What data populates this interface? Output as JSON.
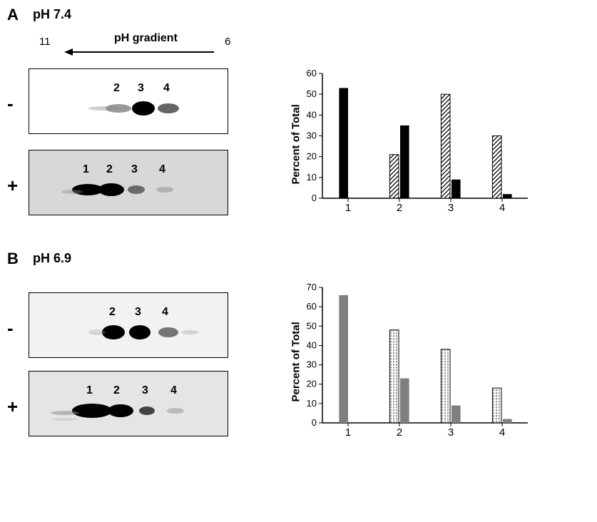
{
  "panel_a": {
    "label": "A",
    "subtitle": "pH 7.4",
    "gradient": {
      "text": "pH gradient",
      "left_val": "11",
      "right_val": "6"
    },
    "conditions": {
      "minus": "-",
      "plus": "+"
    },
    "minus_spots": [
      "2",
      "3",
      "4"
    ],
    "plus_spots": [
      "1",
      "2",
      "3",
      "4"
    ],
    "chart": {
      "type": "bar",
      "ylabel": "Percent of Total",
      "ylim": [
        0,
        60
      ],
      "ytick_step": 10,
      "yticks": [
        "0",
        "10",
        "20",
        "30",
        "40",
        "50",
        "60"
      ],
      "categories": [
        "1",
        "2",
        "3",
        "4"
      ],
      "series": [
        {
          "name": "plus",
          "pattern": "solid",
          "color": "#000000",
          "values": [
            53,
            35,
            9,
            2
          ]
        },
        {
          "name": "minus",
          "pattern": "diagonal",
          "color": "#000000",
          "values": [
            0,
            21,
            50,
            30
          ]
        }
      ],
      "background_color": "#ffffff",
      "axis_color": "#000000",
      "label_fontsize": 15,
      "bar_width": 0.35
    }
  },
  "panel_b": {
    "label": "B",
    "subtitle": "pH 6.9",
    "conditions": {
      "minus": "-",
      "plus": "+"
    },
    "minus_spots": [
      "2",
      "3",
      "4"
    ],
    "plus_spots": [
      "1",
      "2",
      "3",
      "4"
    ],
    "chart": {
      "type": "bar",
      "ylabel": "Percent of Total",
      "ylim": [
        0,
        70
      ],
      "ytick_step": 10,
      "yticks": [
        "0",
        "10",
        "20",
        "30",
        "40",
        "50",
        "60",
        "70"
      ],
      "categories": [
        "1",
        "2",
        "3",
        "4"
      ],
      "series": [
        {
          "name": "plus",
          "pattern": "solid",
          "color": "#7f7f7f",
          "values": [
            66,
            23,
            9,
            2
          ]
        },
        {
          "name": "minus",
          "pattern": "dotted",
          "color": "#000000",
          "values": [
            0,
            48,
            38,
            18
          ]
        }
      ],
      "background_color": "#ffffff",
      "axis_color": "#000000",
      "label_fontsize": 15,
      "bar_width": 0.35
    }
  }
}
